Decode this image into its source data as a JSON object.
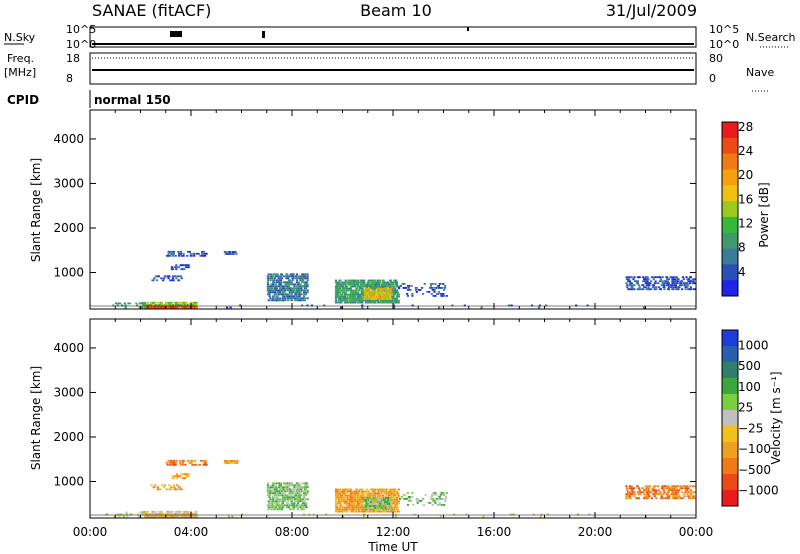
{
  "header": {
    "station": "SANAE (fitACF)",
    "beam": "Beam 10",
    "date": "31/Jul/2009"
  },
  "status_panels": {
    "nsky": {
      "label": "N.Sky",
      "ticks": [
        "10^5",
        "10^0"
      ]
    },
    "nsearch": {
      "label": "N.Search",
      "ticks": [
        "10^5",
        "10^0"
      ]
    },
    "freq": {
      "label_line1": "Freq.",
      "label_line2": "[MHz]",
      "ticks": [
        "18",
        "8"
      ]
    },
    "nave": {
      "label": "Nave",
      "ticks": [
        "80",
        "0"
      ]
    },
    "cpid": {
      "label": "CPID",
      "value": "normal 150"
    }
  },
  "chart_data": [
    {
      "type": "heatmap",
      "name": "power",
      "ylabel": "Slant Range [km]",
      "xlabel": "",
      "x_ticks": [
        "00:00",
        "04:00",
        "08:00",
        "12:00",
        "16:00",
        "20:00",
        "00:00"
      ],
      "y_ticks": [
        "1000",
        "2000",
        "3000",
        "4000"
      ],
      "xlim": [
        0,
        24
      ],
      "ylim": [
        180,
        4650
      ],
      "colorbar": {
        "label": "Power [dB]",
        "ticks": [
          "4",
          "8",
          "12",
          "16",
          "20",
          "24",
          "28"
        ],
        "colors": [
          "#1e24e8",
          "#2a4fb8",
          "#3a7a9a",
          "#3e9a6a",
          "#38b83a",
          "#9cc820",
          "#f2c010",
          "#f4a010",
          "#f07a14",
          "#ec4c14",
          "#e81c1c"
        ]
      },
      "clusters": [
        {
          "t": [
            2.2,
            4.2
          ],
          "r": [
            190,
            260
          ],
          "dens": 0.9,
          "level": 9
        },
        {
          "t": [
            2.0,
            4.2
          ],
          "r": [
            250,
            340
          ],
          "dens": 0.5,
          "level": 5
        },
        {
          "t": [
            0.6,
            2.2
          ],
          "r": [
            190,
            300
          ],
          "dens": 0.15,
          "level": 3
        },
        {
          "t": [
            3.0,
            4.6
          ],
          "r": [
            1350,
            1450
          ],
          "dens": 0.35,
          "level": 1
        },
        {
          "t": [
            5.3,
            5.8
          ],
          "r": [
            1390,
            1480
          ],
          "dens": 0.5,
          "level": 1
        },
        {
          "t": [
            3.2,
            3.9
          ],
          "r": [
            1050,
            1150
          ],
          "dens": 0.4,
          "level": 1
        },
        {
          "t": [
            2.4,
            3.6
          ],
          "r": [
            800,
            900
          ],
          "dens": 0.3,
          "level": 1
        },
        {
          "t": [
            7.0,
            8.6
          ],
          "r": [
            350,
            950
          ],
          "dens": 0.5,
          "level": 2
        },
        {
          "t": [
            9.7,
            12.2
          ],
          "r": [
            300,
            800
          ],
          "dens": 0.65,
          "level": 3
        },
        {
          "t": [
            10.8,
            11.9
          ],
          "r": [
            380,
            620
          ],
          "dens": 0.6,
          "level": 6
        },
        {
          "t": [
            12.2,
            14.1
          ],
          "r": [
            450,
            750
          ],
          "dens": 0.18,
          "level": 1
        },
        {
          "t": [
            21.2,
            23.9
          ],
          "r": [
            600,
            880
          ],
          "dens": 0.35,
          "level": 1
        },
        {
          "t": [
            5.0,
            22.0
          ],
          "r": [
            190,
            260
          ],
          "dens": 0.03,
          "level": 1
        }
      ]
    },
    {
      "type": "heatmap",
      "name": "velocity",
      "ylabel": "Slant Range [km]",
      "xlabel": "Time UT",
      "x_ticks": [
        "00:00",
        "04:00",
        "08:00",
        "12:00",
        "16:00",
        "20:00",
        "00:00"
      ],
      "y_ticks": [
        "1000",
        "2000",
        "3000",
        "4000"
      ],
      "xlim": [
        0,
        24
      ],
      "ylim": [
        180,
        4650
      ],
      "colorbar": {
        "label": "Velocity [m s⁻¹]",
        "ticks": [
          "1000",
          "500",
          "100",
          "25",
          "−25",
          "−100",
          "−500",
          "−1000"
        ],
        "colors": [
          "#1e3cd8",
          "#2a5fb0",
          "#2f7f6a",
          "#3aa83c",
          "#78d040",
          "#c0c0c0",
          "#f0c020",
          "#f0a020",
          "#f07a18",
          "#ec4818",
          "#e81c1c"
        ]
      },
      "clusters": [
        {
          "t": [
            2.2,
            4.2
          ],
          "r": [
            190,
            260
          ],
          "dens": 0.9,
          "level": 6
        },
        {
          "t": [
            2.0,
            4.2
          ],
          "r": [
            250,
            340
          ],
          "dens": 0.45,
          "level": 6
        },
        {
          "t": [
            0.6,
            2.2
          ],
          "r": [
            190,
            300
          ],
          "dens": 0.15,
          "level": 5
        },
        {
          "t": [
            3.0,
            4.6
          ],
          "r": [
            1350,
            1450
          ],
          "dens": 0.35,
          "level": 8
        },
        {
          "t": [
            5.3,
            5.8
          ],
          "r": [
            1390,
            1480
          ],
          "dens": 0.5,
          "level": 7
        },
        {
          "t": [
            3.2,
            3.9
          ],
          "r": [
            1050,
            1150
          ],
          "dens": 0.4,
          "level": 7
        },
        {
          "t": [
            2.4,
            3.6
          ],
          "r": [
            800,
            900
          ],
          "dens": 0.3,
          "level": 7
        },
        {
          "t": [
            7.0,
            8.6
          ],
          "r": [
            350,
            950
          ],
          "dens": 0.5,
          "level": 4
        },
        {
          "t": [
            9.7,
            12.2
          ],
          "r": [
            300,
            800
          ],
          "dens": 0.65,
          "level": 7
        },
        {
          "t": [
            10.8,
            11.9
          ],
          "r": [
            380,
            620
          ],
          "dens": 0.6,
          "level": 4
        },
        {
          "t": [
            12.2,
            14.1
          ],
          "r": [
            450,
            750
          ],
          "dens": 0.18,
          "level": 4
        },
        {
          "t": [
            21.2,
            23.9
          ],
          "r": [
            600,
            880
          ],
          "dens": 0.35,
          "level": 8
        },
        {
          "t": [
            5.0,
            22.0
          ],
          "r": [
            190,
            260
          ],
          "dens": 0.03,
          "level": 5
        }
      ]
    }
  ]
}
